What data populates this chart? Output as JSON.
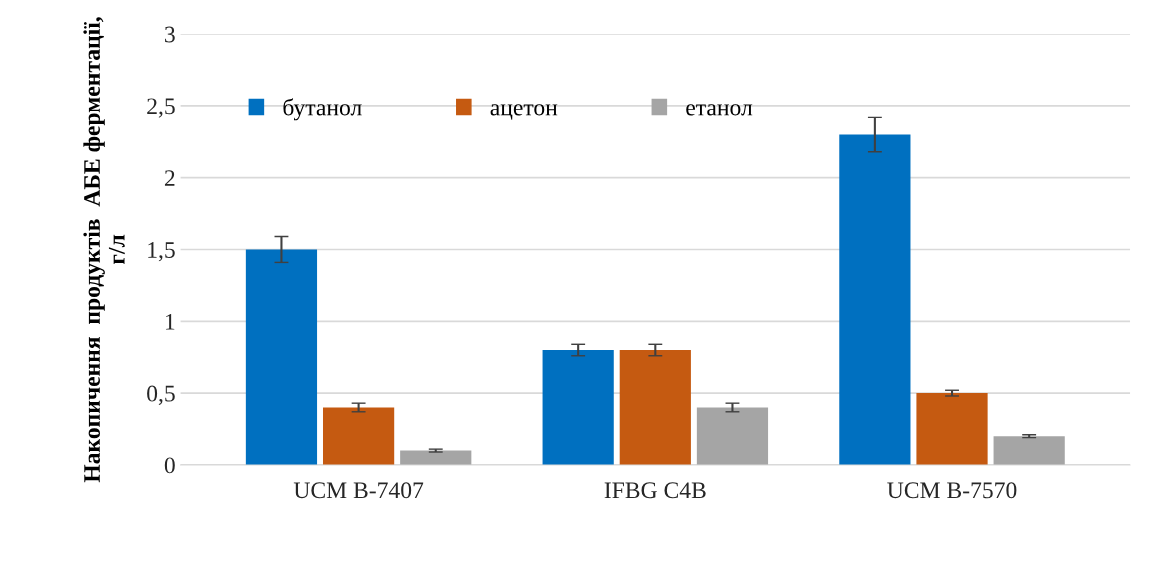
{
  "chart_data": {
    "type": "bar",
    "ylabel": "Накопичення  продуктів  АБЕ ферментації, г/л",
    "categories": [
      "UCM B-7407",
      "IFBG C4B",
      "UCM B-7570"
    ],
    "series": [
      {
        "name": "бутанол",
        "color": "#0070c0",
        "values": [
          1.5,
          0.8,
          2.3
        ],
        "errors": [
          0.09,
          0.04,
          0.12
        ]
      },
      {
        "name": "ацетон",
        "color": "#c55a11",
        "values": [
          0.4,
          0.8,
          0.5
        ],
        "errors": [
          0.03,
          0.04,
          0.02
        ]
      },
      {
        "name": "етанол",
        "color": "#a5a5a5",
        "values": [
          0.1,
          0.4,
          0.2
        ],
        "errors": [
          0.01,
          0.03,
          0.01
        ]
      }
    ],
    "ylim": [
      0,
      3
    ],
    "yticks": [
      0,
      {
        "value": 0.5,
        "label": "0,5"
      },
      1,
      {
        "value": 1.5,
        "label": "1,5"
      },
      2,
      {
        "value": 2.5,
        "label": "2,5"
      },
      3
    ],
    "grid": "y",
    "legend": "top left"
  }
}
